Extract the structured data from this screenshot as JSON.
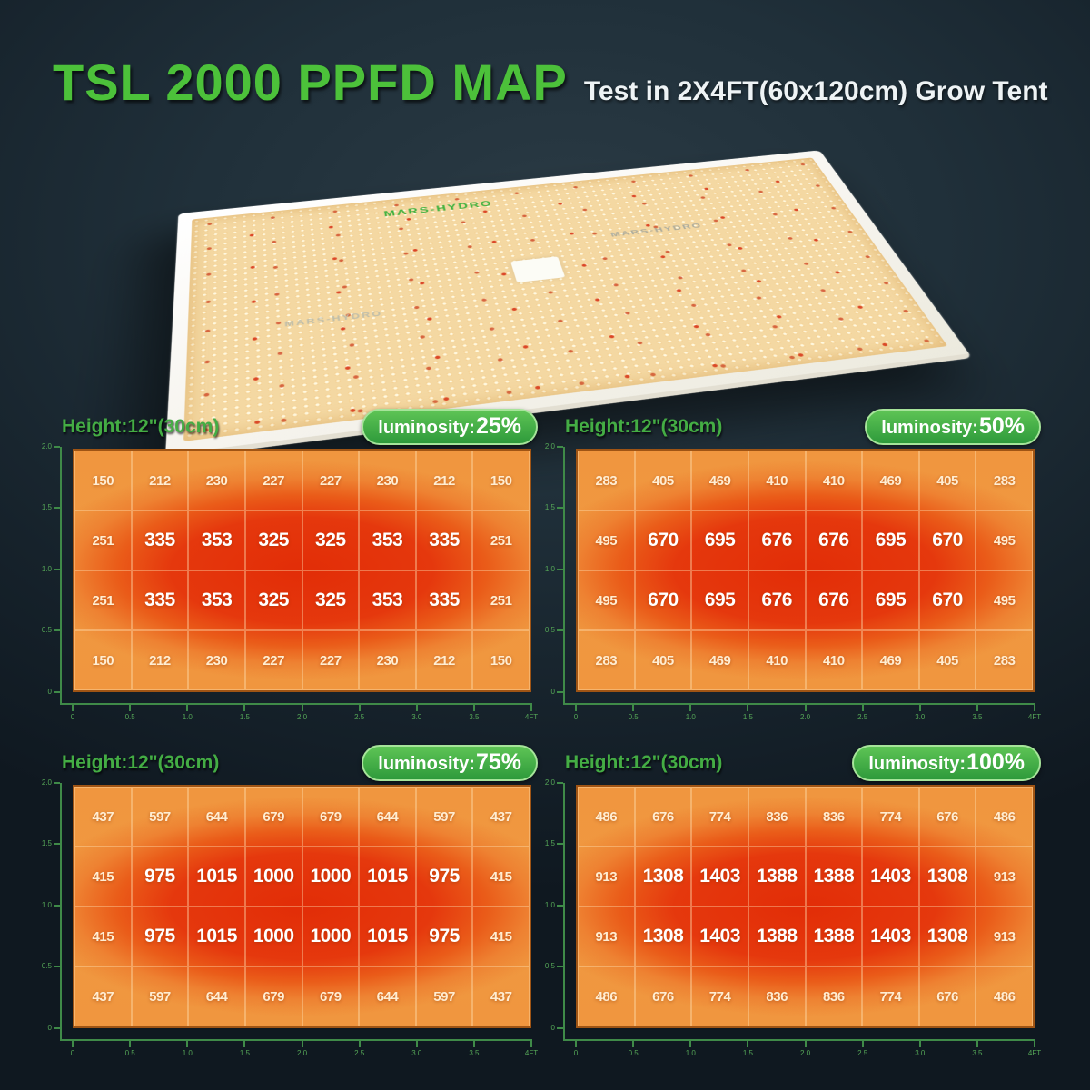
{
  "header": {
    "title": "TSL 2000 PPFD MAP",
    "subtitle": "Test in 2X4FT(60x120cm) Grow Tent"
  },
  "lamp": {
    "logo_text": "MARS-HYDRO"
  },
  "axes": {
    "x_ticks": [
      "0",
      "0.5",
      "1.0",
      "1.5",
      "2.0",
      "2.5",
      "3.0",
      "3.5",
      "4FT"
    ],
    "y_ticks": [
      "2.0",
      "1.5",
      "1.0",
      "0.5",
      "0"
    ]
  },
  "colors": {
    "title_green": "#4cc13a",
    "label_green": "#44ad44",
    "badge_green": "#36a03e",
    "axis_green": "#3f8a48",
    "heat_low": "#F0963F",
    "heat_mid": "#EC6A1E",
    "heat_high": "#E22D07",
    "cell_text": "#FFFFFF"
  },
  "chart_data": [
    {
      "type": "heatmap",
      "height_label": "Height:12\"(30cm)",
      "luminosity_label": "luminosity:",
      "luminosity_value": "25%",
      "x_ticks": [
        "0",
        "0.5",
        "1.0",
        "1.5",
        "2.0",
        "2.5",
        "3.0",
        "3.5",
        "4FT"
      ],
      "y_ticks": [
        "2.0",
        "1.5",
        "1.0",
        "0.5",
        "0"
      ],
      "values": [
        [
          150,
          212,
          230,
          227,
          227,
          230,
          212,
          150
        ],
        [
          251,
          335,
          353,
          325,
          325,
          353,
          335,
          251
        ],
        [
          251,
          335,
          353,
          325,
          325,
          353,
          335,
          251
        ],
        [
          150,
          212,
          230,
          227,
          227,
          230,
          212,
          150
        ]
      ]
    },
    {
      "type": "heatmap",
      "height_label": "Height:12\"(30cm)",
      "luminosity_label": "luminosity:",
      "luminosity_value": "50%",
      "x_ticks": [
        "0",
        "0.5",
        "1.0",
        "1.5",
        "2.0",
        "2.5",
        "3.0",
        "3.5",
        "4FT"
      ],
      "y_ticks": [
        "2.0",
        "1.5",
        "1.0",
        "0.5",
        "0"
      ],
      "values": [
        [
          283,
          405,
          469,
          410,
          410,
          469,
          405,
          283
        ],
        [
          495,
          670,
          695,
          676,
          676,
          695,
          670,
          495
        ],
        [
          495,
          670,
          695,
          676,
          676,
          695,
          670,
          495
        ],
        [
          283,
          405,
          469,
          410,
          410,
          469,
          405,
          283
        ]
      ]
    },
    {
      "type": "heatmap",
      "height_label": "Height:12\"(30cm)",
      "luminosity_label": "luminosity:",
      "luminosity_value": "75%",
      "x_ticks": [
        "0",
        "0.5",
        "1.0",
        "1.5",
        "2.0",
        "2.5",
        "3.0",
        "3.5",
        "4FT"
      ],
      "y_ticks": [
        "2.0",
        "1.5",
        "1.0",
        "0.5",
        "0"
      ],
      "values": [
        [
          437,
          597,
          644,
          679,
          679,
          644,
          597,
          437
        ],
        [
          415,
          975,
          1015,
          1000,
          1000,
          1015,
          975,
          415
        ],
        [
          415,
          975,
          1015,
          1000,
          1000,
          1015,
          975,
          415
        ],
        [
          437,
          597,
          644,
          679,
          679,
          644,
          597,
          437
        ]
      ]
    },
    {
      "type": "heatmap",
      "height_label": "Height:12\"(30cm)",
      "luminosity_label": "luminosity:",
      "luminosity_value": "100%",
      "x_ticks": [
        "0",
        "0.5",
        "1.0",
        "1.5",
        "2.0",
        "2.5",
        "3.0",
        "3.5",
        "4FT"
      ],
      "y_ticks": [
        "2.0",
        "1.5",
        "1.0",
        "0.5",
        "0"
      ],
      "values": [
        [
          486,
          676,
          774,
          836,
          836,
          774,
          676,
          486
        ],
        [
          913,
          1308,
          1403,
          1388,
          1388,
          1403,
          1308,
          913
        ],
        [
          913,
          1308,
          1403,
          1388,
          1388,
          1403,
          1308,
          913
        ],
        [
          486,
          676,
          774,
          836,
          836,
          774,
          676,
          486
        ]
      ]
    }
  ]
}
